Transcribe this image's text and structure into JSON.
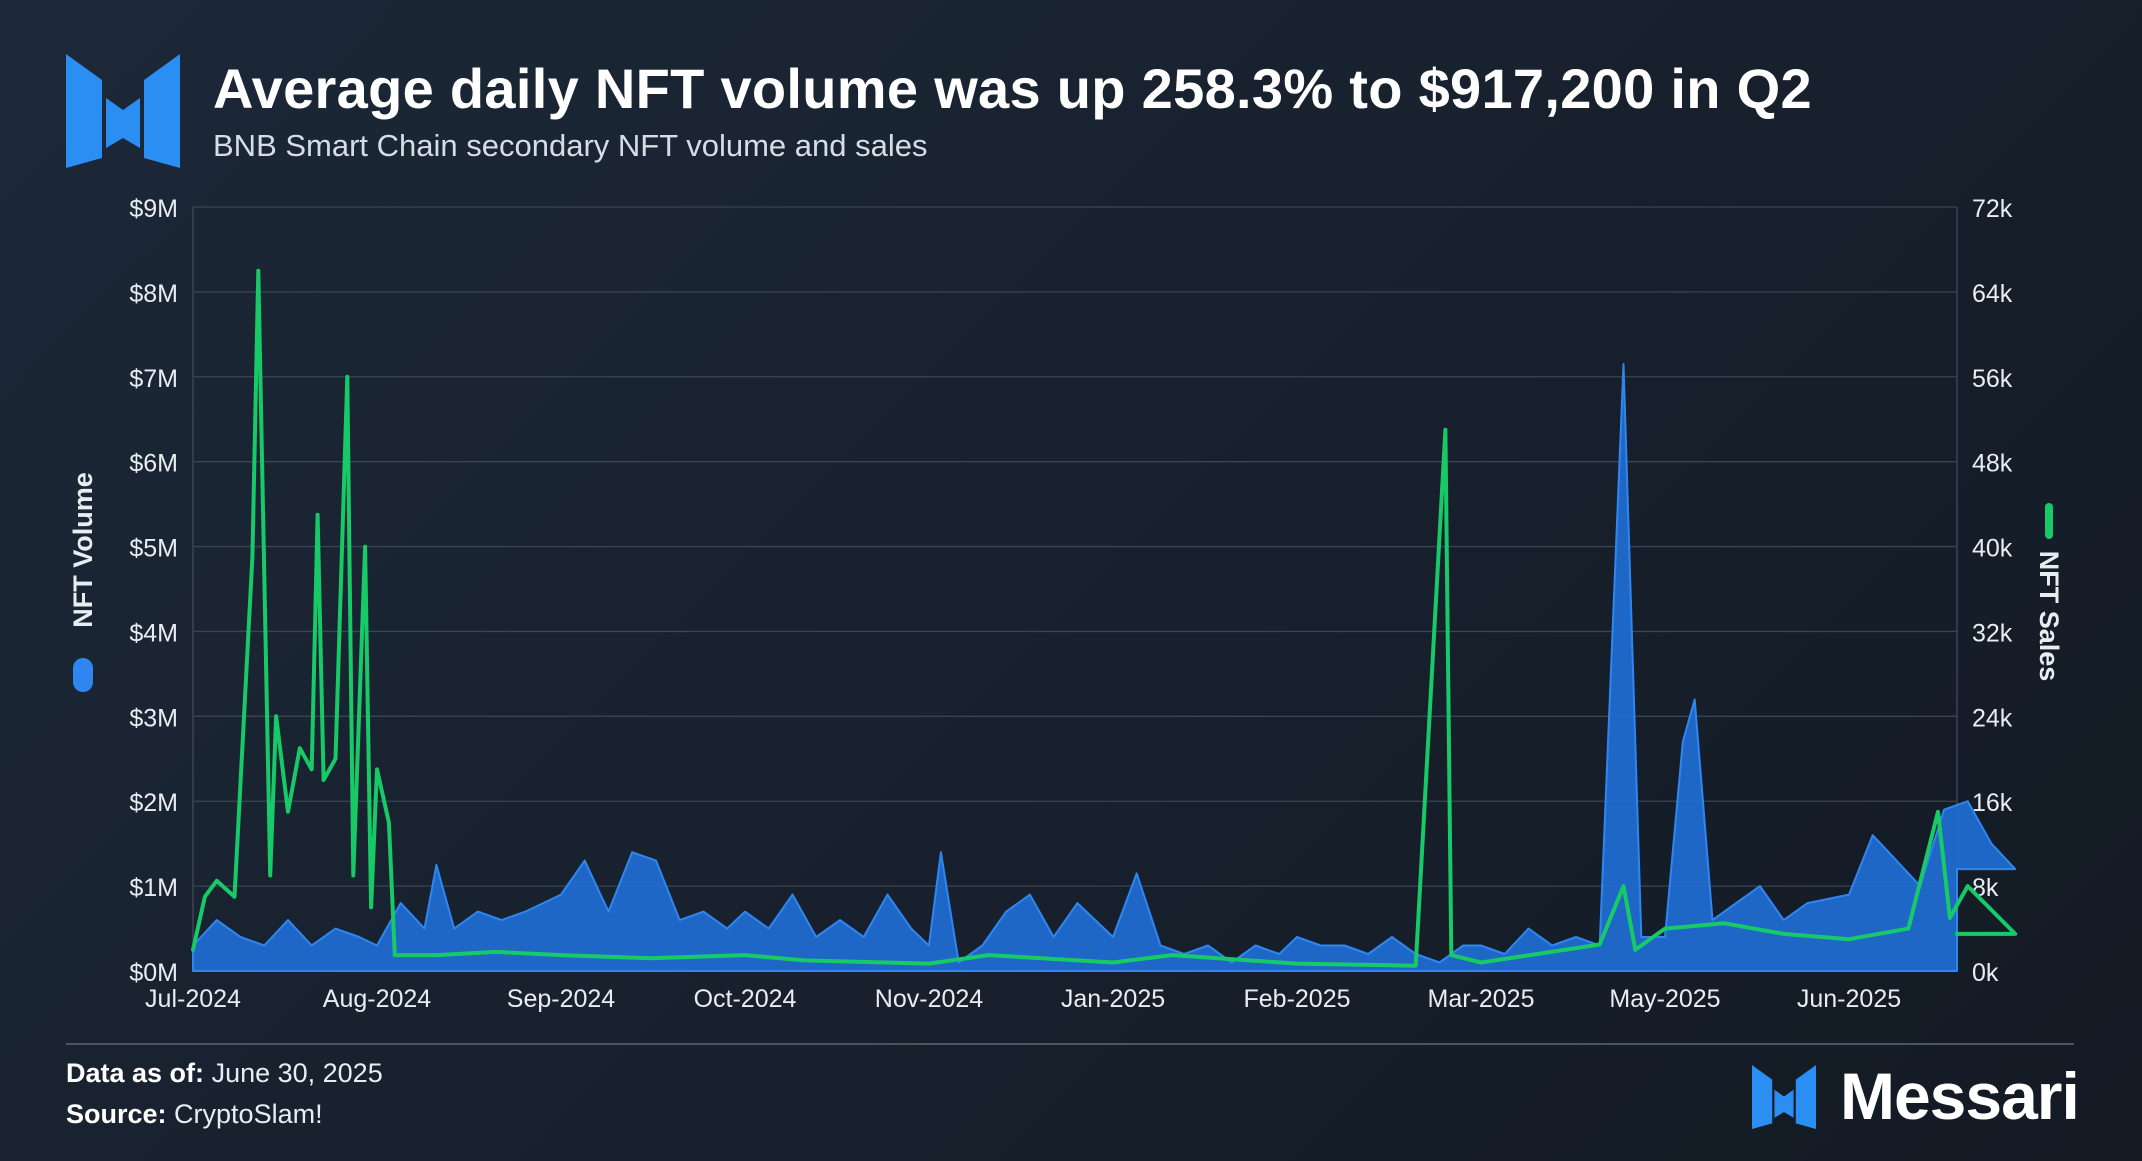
{
  "header": {
    "title": "Average daily NFT volume was up 258.3% to $917,200 in Q2",
    "subtitle": "BNB Smart Chain secondary NFT volume and sales"
  },
  "footer": {
    "data_as_of_label": "Data as of:",
    "data_as_of_value": "June 30, 2025",
    "source_label": "Source:",
    "source_value": "CryptoSlam!",
    "brand_name": "Messari"
  },
  "colors": {
    "volume_fill": "#1f6ed4",
    "volume_line": "#2f86f0",
    "sales_line": "#17c967",
    "grid": "#3a4452",
    "axis_text": "#e8edf2",
    "brand": "#2b8ef2"
  },
  "chart_data": {
    "type": "area",
    "title": "Average daily NFT volume was up 258.3% to $917,200 in Q2",
    "subtitle": "BNB Smart Chain secondary NFT volume and sales",
    "x_tick_labels": [
      "Jul-2024",
      "Aug-2024",
      "Sep-2024",
      "Oct-2024",
      "Nov-2024",
      "Jan-2025",
      "Feb-2025",
      "Mar-2025",
      "May-2025",
      "Jun-2025"
    ],
    "y_left": {
      "label": "NFT Volume",
      "ticks": [
        "$0M",
        "$1M",
        "$2M",
        "$3M",
        "$4M",
        "$5M",
        "$6M",
        "$7M",
        "$8M",
        "$9M"
      ],
      "range": [
        0,
        9000000
      ]
    },
    "y_right": {
      "label": "NFT Sales",
      "ticks": [
        "0k",
        "8k",
        "16k",
        "24k",
        "32k",
        "40k",
        "48k",
        "56k",
        "64k",
        "72k"
      ],
      "range": [
        0,
        72000
      ]
    },
    "legend": [
      {
        "name": "NFT Volume",
        "axis": "left",
        "placement": "left-axis"
      },
      {
        "name": "NFT Sales",
        "axis": "right",
        "placement": "right-axis"
      }
    ],
    "series": [
      {
        "name": "NFT Volume",
        "type": "area",
        "axis": "left",
        "points": [
          [
            "Jul-2024",
            300000
          ],
          [
            "Jul-2024+4d",
            600000
          ],
          [
            "Jul-2024+8d",
            400000
          ],
          [
            "Jul-2024+12d",
            300000
          ],
          [
            "Jul-2024+16d",
            600000
          ],
          [
            "Jul-2024+20d",
            300000
          ],
          [
            "Jul-2024+24d",
            500000
          ],
          [
            "Jul-2024+28d",
            400000
          ],
          [
            "Aug-2024",
            300000
          ],
          [
            "Aug-2024+4d",
            800000
          ],
          [
            "Aug-2024+8d",
            500000
          ],
          [
            "Aug-2024+10d",
            1250000
          ],
          [
            "Aug-2024+13d",
            500000
          ],
          [
            "Aug-2024+17d",
            700000
          ],
          [
            "Aug-2024+21d",
            600000
          ],
          [
            "Aug-2024+25d",
            700000
          ],
          [
            "Sep-2024",
            900000
          ],
          [
            "Sep-2024+4d",
            1300000
          ],
          [
            "Sep-2024+8d",
            700000
          ],
          [
            "Sep-2024+12d",
            1400000
          ],
          [
            "Sep-2024+16d",
            1300000
          ],
          [
            "Sep-2024+20d",
            600000
          ],
          [
            "Sep-2024+24d",
            700000
          ],
          [
            "Sep-2024+28d",
            500000
          ],
          [
            "Oct-2024",
            700000
          ],
          [
            "Oct-2024+4d",
            500000
          ],
          [
            "Oct-2024+8d",
            900000
          ],
          [
            "Oct-2024+12d",
            400000
          ],
          [
            "Oct-2024+16d",
            600000
          ],
          [
            "Oct-2024+20d",
            400000
          ],
          [
            "Oct-2024+24d",
            900000
          ],
          [
            "Oct-2024+28d",
            500000
          ],
          [
            "Nov-2024",
            300000
          ],
          [
            "Nov-2024+2d",
            1400000
          ],
          [
            "Nov-2024+5d",
            100000
          ],
          [
            "Nov-2024+9d",
            300000
          ],
          [
            "Nov-2024+13d",
            700000
          ],
          [
            "Nov-2024+17d",
            900000
          ],
          [
            "Nov-2024+21d",
            400000
          ],
          [
            "Nov-2024+25d",
            800000
          ],
          [
            "Jan-2025",
            400000
          ],
          [
            "Jan-2025+4d",
            1150000
          ],
          [
            "Jan-2025+8d",
            300000
          ],
          [
            "Jan-2025+12d",
            200000
          ],
          [
            "Jan-2025+16d",
            300000
          ],
          [
            "Jan-2025+20d",
            100000
          ],
          [
            "Jan-2025+24d",
            300000
          ],
          [
            "Jan-2025+28d",
            200000
          ],
          [
            "Feb-2025",
            400000
          ],
          [
            "Feb-2025+4d",
            300000
          ],
          [
            "Feb-2025+8d",
            300000
          ],
          [
            "Feb-2025+12d",
            200000
          ],
          [
            "Feb-2025+16d",
            400000
          ],
          [
            "Feb-2025+20d",
            200000
          ],
          [
            "Feb-2025+24d",
            100000
          ],
          [
            "Feb-2025+28d",
            300000
          ],
          [
            "Mar-2025",
            300000
          ],
          [
            "Mar-2025+4d",
            200000
          ],
          [
            "Mar-2025+8d",
            500000
          ],
          [
            "Mar-2025+12d",
            300000
          ],
          [
            "Mar-2025+16d",
            400000
          ],
          [
            "Mar-2025+20d",
            300000
          ],
          [
            "Mar-2025+24d",
            7150000
          ],
          [
            "Mar-2025+27d",
            400000
          ],
          [
            "May-2025",
            400000
          ],
          [
            "May-2025+3d",
            2700000
          ],
          [
            "May-2025+5d",
            3200000
          ],
          [
            "May-2025+8d",
            600000
          ],
          [
            "May-2025+12d",
            800000
          ],
          [
            "May-2025+16d",
            1000000
          ],
          [
            "May-2025+20d",
            600000
          ],
          [
            "May-2025+24d",
            800000
          ],
          [
            "Jun-2025",
            900000
          ],
          [
            "Jun-2025+4d",
            1600000
          ],
          [
            "Jun-2025+8d",
            1300000
          ],
          [
            "Jun-2025+12d",
            1000000
          ],
          [
            "Jun-2025+16d",
            1900000
          ],
          [
            "Jun-2025+20d",
            2000000
          ],
          [
            "Jun-2025+24d",
            1500000
          ],
          [
            "Jun-2025+28d",
            1200000
          ]
        ]
      },
      {
        "name": "NFT Sales",
        "type": "line",
        "axis": "right",
        "points": [
          [
            "Jul-2024",
            2000
          ],
          [
            "Jul-2024+2d",
            7000
          ],
          [
            "Jul-2024+4d",
            8500
          ],
          [
            "Jul-2024+7d",
            7000
          ],
          [
            "Jul-2024+10d",
            39000
          ],
          [
            "Jul-2024+11d",
            66000
          ],
          [
            "Jul-2024+13d",
            9000
          ],
          [
            "Jul-2024+14d",
            24000
          ],
          [
            "Jul-2024+16d",
            15000
          ],
          [
            "Jul-2024+18d",
            21000
          ],
          [
            "Jul-2024+20d",
            19000
          ],
          [
            "Jul-2024+21d",
            43000
          ],
          [
            "Jul-2024+22d",
            18000
          ],
          [
            "Jul-2024+24d",
            20000
          ],
          [
            "Jul-2024+26d",
            56000
          ],
          [
            "Jul-2024+27d",
            9000
          ],
          [
            "Jul-2024+29d",
            40000
          ],
          [
            "Jul-2024+30d",
            6000
          ],
          [
            "Aug-2024",
            19000
          ],
          [
            "Aug-2024+2d",
            14000
          ],
          [
            "Aug-2024+3d",
            1500
          ],
          [
            "Aug-2024+10d",
            1500
          ],
          [
            "Aug-2024+20d",
            1800
          ],
          [
            "Sep-2024",
            1500
          ],
          [
            "Sep-2024+15d",
            1200
          ],
          [
            "Oct-2024",
            1500
          ],
          [
            "Oct-2024+10d",
            1000
          ],
          [
            "Nov-2024",
            700
          ],
          [
            "Nov-2024+10d",
            1500
          ],
          [
            "Jan-2025",
            800
          ],
          [
            "Jan-2025+10d",
            1500
          ],
          [
            "Feb-2025",
            700
          ],
          [
            "Feb-2025+20d",
            500
          ],
          [
            "Feb-2025+25d",
            51000
          ],
          [
            "Feb-2025+26d",
            1500
          ],
          [
            "Mar-2025",
            800
          ],
          [
            "Mar-2025+20d",
            2500
          ],
          [
            "Mar-2025+24d",
            8000
          ],
          [
            "Mar-2025+26d",
            2000
          ],
          [
            "May-2025",
            4000
          ],
          [
            "May-2025+10d",
            4500
          ],
          [
            "May-2025+20d",
            3500
          ],
          [
            "Jun-2025",
            3000
          ],
          [
            "Jun-2025+10d",
            4000
          ],
          [
            "Jun-2025+15d",
            15000
          ],
          [
            "Jun-2025+17d",
            5000
          ],
          [
            "Jun-2025+20d",
            8000
          ],
          [
            "Jun-2025+28d",
            3500
          ]
        ]
      }
    ]
  }
}
